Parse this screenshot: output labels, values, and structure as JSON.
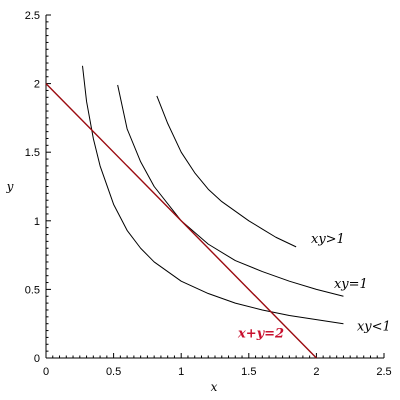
{
  "chart_data": {
    "type": "line",
    "title": "",
    "xlabel": "x",
    "ylabel": "y",
    "xlim": [
      0,
      2.5
    ],
    "ylim": [
      0,
      2.5
    ],
    "xticks": [
      "0",
      "0.5",
      "1",
      "1.5",
      "2",
      "2.5"
    ],
    "yticks": [
      "0",
      "0.5",
      "1",
      "1.5",
      "2",
      "2.5"
    ],
    "grid": false,
    "series": [
      {
        "name": "xy<1",
        "color": "#000000",
        "x": [
          0.27,
          0.3,
          0.35,
          0.4,
          0.5,
          0.6,
          0.7,
          0.8,
          1.0,
          1.2,
          1.4,
          1.6,
          1.8,
          2.0,
          2.2
        ],
        "y": [
          2.13,
          1.87,
          1.6,
          1.4,
          1.12,
          0.93,
          0.8,
          0.7,
          0.56,
          0.47,
          0.4,
          0.35,
          0.31,
          0.28,
          0.25
        ]
      },
      {
        "name": "xy=1",
        "color": "#000000",
        "x": [
          0.53,
          0.6,
          0.7,
          0.8,
          1.0,
          1.2,
          1.4,
          1.6,
          1.8,
          2.0,
          2.2
        ],
        "y": [
          1.99,
          1.67,
          1.43,
          1.25,
          1.0,
          0.83,
          0.71,
          0.63,
          0.56,
          0.5,
          0.45
        ]
      },
      {
        "name": "xy>1",
        "color": "#000000",
        "x": [
          0.82,
          0.9,
          1.0,
          1.1,
          1.2,
          1.3,
          1.4,
          1.5,
          1.6,
          1.7,
          1.85
        ],
        "y": [
          1.91,
          1.71,
          1.5,
          1.35,
          1.23,
          1.14,
          1.07,
          1.0,
          0.94,
          0.88,
          0.81
        ]
      },
      {
        "name": "x+y=2",
        "color": "#9b0b10",
        "x": [
          0,
          2
        ],
        "y": [
          2,
          0
        ]
      }
    ],
    "annotations": [
      {
        "text": "xy>1",
        "x": 1.96,
        "y": 0.84,
        "color": "#000000"
      },
      {
        "text": "xy=1",
        "x": 2.13,
        "y": 0.51,
        "color": "#000000"
      },
      {
        "text": "xy<1",
        "x": 2.3,
        "y": 0.2,
        "color": "#000000"
      },
      {
        "text": "x+y=2",
        "x": 1.42,
        "y": 0.15,
        "color": "#c8102e"
      }
    ]
  }
}
